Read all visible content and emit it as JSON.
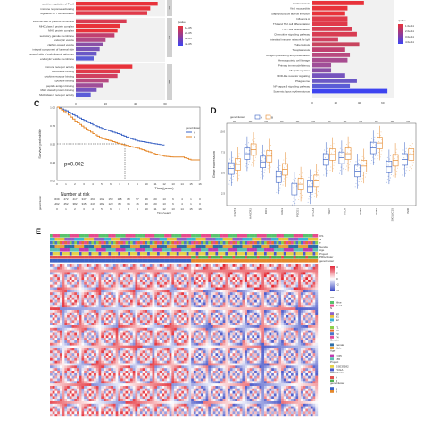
{
  "panel_labels": {
    "C": "C",
    "D": "D",
    "E": "E"
  },
  "panel_a": {
    "terms": [
      "positive regulation of T cell",
      "immune response-activating",
      "regulation of T cell activation",
      "external side of plasma membrane",
      "MHC class II protein complex",
      "MHC protein complex",
      "secretory granule membrane",
      "endocytic vesicle",
      "clathrin-coated vesicle",
      "integral component of lumenal side",
      "lumenal side of endoplasmic reticulum",
      "endocytic vesicle membrane",
      "immune receptor activity",
      "chemokine binding",
      "cytokine receptor binding",
      "cytokine binding",
      "peptide antigen binding",
      "MHC class II protein binding",
      "MHC class II receptor activity"
    ],
    "bar_values": [
      55,
      50,
      48,
      34,
      30,
      28,
      26,
      20,
      18,
      16,
      14,
      12,
      38,
      30,
      28,
      22,
      18,
      14,
      10
    ],
    "bar_colors": [
      "#e8323a",
      "#e8323a",
      "#e03a4a",
      "#d83c52",
      "#e8323a",
      "#e8323a",
      "#c04070",
      "#b04a86",
      "#8a50a6",
      "#7a54b6",
      "#6a58c6",
      "#5a5cd6",
      "#e8323a",
      "#e03a4a",
      "#d04060",
      "#b84a80",
      "#a04e98",
      "#7654be",
      "#5a5cd8"
    ],
    "xticks": [
      "0",
      "20",
      "40",
      "60"
    ],
    "legend_title": "qvalue",
    "legend_ticks": [
      "1e-05",
      "2e-05",
      "3e-05",
      "4e-05"
    ],
    "facets": [
      "BP",
      "CC",
      "MF"
    ]
  },
  "panel_b": {
    "terms": [
      "Leishmaniasis",
      "Viral myocarditis",
      "Staphylococcus aureus infection",
      "Influenza A",
      "Th1 and Th2 cell differentiation",
      "Th17 cell differentiation",
      "Chemokine signaling pathway",
      "Intestinal immune network for IgA",
      "Tuberculosis",
      "Toxoplasmosis",
      "Antigen processing and presentation",
      "Hematopoietic cell lineage",
      "Primary immunodeficiency",
      "Allograft rejection",
      "NOD-like receptor signaling",
      "Phagosome",
      "NF-kappa B signaling pathway",
      "Systemic lupus erythematosus"
    ],
    "bar_values": [
      44,
      30,
      28,
      30,
      30,
      34,
      38,
      22,
      40,
      28,
      32,
      30,
      16,
      16,
      28,
      38,
      32,
      64
    ],
    "bar_colors": [
      "#e8323a",
      "#e8323a",
      "#e8323a",
      "#e03a4a",
      "#e03a4a",
      "#d83c52",
      "#d83c52",
      "#d04060",
      "#c8445e",
      "#c04070",
      "#b84a80",
      "#a84c90",
      "#a04e98",
      "#8a50a6",
      "#7654be",
      "#6a58c6",
      "#5a5cd6",
      "#3e44f0"
    ],
    "xticks": [
      "0",
      "20",
      "40",
      "60"
    ],
    "legend_title": "qvalue",
    "legend_ticks": [
      "1.0e-11",
      "2.0e-11",
      "3.0e-11",
      "4.0e-11"
    ]
  },
  "panel_c": {
    "ylabel": "Survival probability",
    "xlabel": "Time(years)",
    "legend_title": "geneCluster",
    "legend_items": [
      "A",
      "B"
    ],
    "series_colors": {
      "A": "#3a62c4",
      "B": "#e5882b"
    },
    "pvalue": "p=0.002",
    "xticks": [
      "0",
      "1",
      "2",
      "3",
      "4",
      "5",
      "6",
      "7",
      "8",
      "9",
      "10",
      "11",
      "12",
      "13",
      "14",
      "15",
      "16"
    ],
    "yticks": [
      "0.00",
      "0.25",
      "0.50",
      "0.75",
      "1.00"
    ],
    "risk_title": "Number at risk",
    "risk_ylabel": "geneCluster",
    "risk_rows": {
      "A": [
        "539",
        "472",
        "417",
        "347",
        "264",
        "192",
        "153",
        "118",
        "80",
        "57",
        "39",
        "20",
        "13",
        "6",
        "4",
        "1",
        "0"
      ],
      "B": [
        "492",
        "452",
        "382",
        "345",
        "247",
        "182",
        "123",
        "89",
        "66",
        "46",
        "30",
        "20",
        "13",
        "6",
        "4",
        "1",
        "0"
      ]
    },
    "risk_xlabel": "Time(years)",
    "median_time": 7.6,
    "series": [
      {
        "name": "A",
        "x": [
          0,
          1,
          2,
          3,
          4,
          5,
          6,
          7,
          8,
          9,
          10,
          11,
          12
        ],
        "y": [
          1.0,
          0.95,
          0.88,
          0.82,
          0.76,
          0.71,
          0.67,
          0.63,
          0.58,
          0.54,
          0.52,
          0.5,
          0.48
        ]
      },
      {
        "name": "B",
        "x": [
          0,
          1,
          2,
          3,
          4,
          5,
          6,
          7,
          8,
          9,
          10,
          11,
          12,
          13,
          14,
          15,
          16
        ],
        "y": [
          1.0,
          0.92,
          0.81,
          0.72,
          0.64,
          0.57,
          0.54,
          0.5,
          0.47,
          0.44,
          0.4,
          0.36,
          0.33,
          0.32,
          0.32,
          0.28,
          0.28
        ]
      }
    ]
  },
  "panel_d": {
    "legend_title": "geneCluster",
    "legend_items": [
      "A",
      "B"
    ],
    "series_colors": {
      "A": "#3a62c4",
      "B": "#e5882b"
    },
    "ylabel": "Gene expression",
    "yticks": [
      "2.5",
      "5.0",
      "7.5",
      "10.0"
    ],
    "genes": [
      "CD274",
      "HAVCR2",
      "IDO1",
      "LAG3",
      "PDCD1",
      "CTLA4",
      "TIGIT",
      "BTLA",
      "CD80",
      "CD86",
      "SIGLEC15",
      "VSIR"
    ],
    "stars": [
      "***",
      "***",
      "***",
      "***",
      "***",
      "***",
      "***",
      "***",
      "***",
      "***",
      "***",
      "***"
    ],
    "chart_data": {
      "type": "box",
      "median_A": [
        5.5,
        7.3,
        6.3,
        4.5,
        3.0,
        3.3,
        6.6,
        6.8,
        5.2,
        8.0,
        5.7,
        6.6
      ],
      "median_B": [
        6.0,
        7.8,
        7.0,
        5.4,
        3.6,
        4.0,
        7.2,
        7.3,
        5.8,
        8.6,
        6.5,
        7.2
      ]
    }
  },
  "panel_e": {
    "annot_rows": [
      "OS",
      "N",
      "T",
      "Gender",
      "Age",
      "Project",
      "PRGcluster",
      "geneCluster"
    ],
    "legend_scale": [
      "4",
      "2",
      "0",
      "-2",
      "-4"
    ],
    "legend_groups": [
      {
        "title": "OS",
        "items": [
          "Alive",
          "Dead"
        ],
        "colors": [
          "#58c26c",
          "#e64a8c"
        ]
      },
      {
        "title": "N",
        "items": [
          "N0",
          "N1",
          "N2"
        ],
        "colors": [
          "#8e63c8",
          "#e8c13c",
          "#3cb4d4"
        ]
      },
      {
        "title": "T",
        "items": [
          "T1",
          "T2",
          "T3",
          "T4"
        ],
        "colors": [
          "#8bd04b",
          "#e66f2e",
          "#4a76c9",
          "#e24a9a"
        ]
      },
      {
        "title": "Gender",
        "items": [
          "Female",
          "Male"
        ],
        "colors": [
          "#2e6ea8",
          "#e8a23b"
        ]
      },
      {
        "title": "Age",
        "items": [
          "<=65",
          ">65"
        ],
        "colors": [
          "#c23bb0",
          "#5ec0b0"
        ]
      },
      {
        "title": "Project",
        "items": [
          "GSE39582",
          "TCGA"
        ],
        "colors": [
          "#e6d34a",
          "#4a5acb"
        ]
      },
      {
        "title": "PRGcluster",
        "items": [
          "A",
          "B"
        ],
        "colors": [
          "#e05050",
          "#50b050"
        ]
      },
      {
        "title": "geneCluster",
        "items": [
          "A",
          "B"
        ],
        "colors": [
          "#3a62c4",
          "#e5882b"
        ]
      }
    ]
  }
}
